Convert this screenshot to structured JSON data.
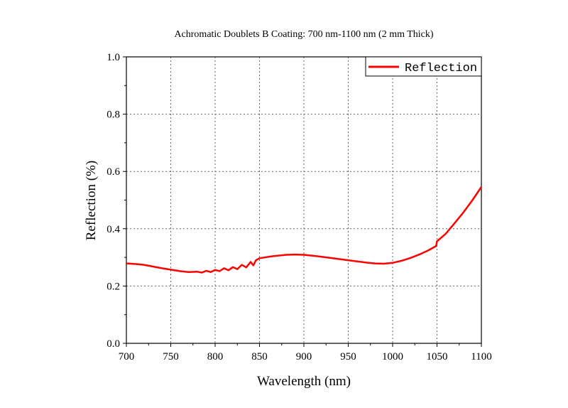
{
  "chart_data": {
    "type": "line",
    "title": "Achromatic Doublets B Coating: 700 nm-1100 nm (2 mm Thick)",
    "xlabel": "Wavelength (nm)",
    "ylabel": "Reflection (%)",
    "xlim": [
      700,
      1100
    ],
    "ylim": [
      0,
      1.0
    ],
    "xticks": [
      700,
      750,
      800,
      850,
      900,
      950,
      1000,
      1050,
      1100
    ],
    "yticks": [
      "0.0",
      "0.2",
      "0.4",
      "0.6",
      "0.8",
      "1.0"
    ],
    "grid": true,
    "legend_position": "top-right",
    "series": [
      {
        "name": "Reflection",
        "color": "#ff0000",
        "x": [
          700,
          710,
          720,
          730,
          740,
          750,
          760,
          770,
          780,
          785,
          790,
          795,
          800,
          805,
          810,
          815,
          820,
          825,
          830,
          835,
          840,
          843,
          846,
          850,
          860,
          870,
          880,
          890,
          900,
          910,
          920,
          930,
          940,
          950,
          960,
          970,
          980,
          990,
          1000,
          1010,
          1020,
          1030,
          1040,
          1049,
          1050,
          1060,
          1070,
          1080,
          1090,
          1100
        ],
        "y": [
          0.279,
          0.277,
          0.274,
          0.268,
          0.262,
          0.257,
          0.252,
          0.249,
          0.25,
          0.247,
          0.253,
          0.249,
          0.256,
          0.252,
          0.262,
          0.255,
          0.266,
          0.259,
          0.274,
          0.265,
          0.284,
          0.272,
          0.29,
          0.297,
          0.302,
          0.306,
          0.309,
          0.31,
          0.309,
          0.306,
          0.302,
          0.298,
          0.294,
          0.29,
          0.286,
          0.282,
          0.279,
          0.278,
          0.281,
          0.288,
          0.298,
          0.31,
          0.324,
          0.34,
          0.356,
          0.383,
          0.42,
          0.458,
          0.5,
          0.546
        ]
      }
    ]
  }
}
